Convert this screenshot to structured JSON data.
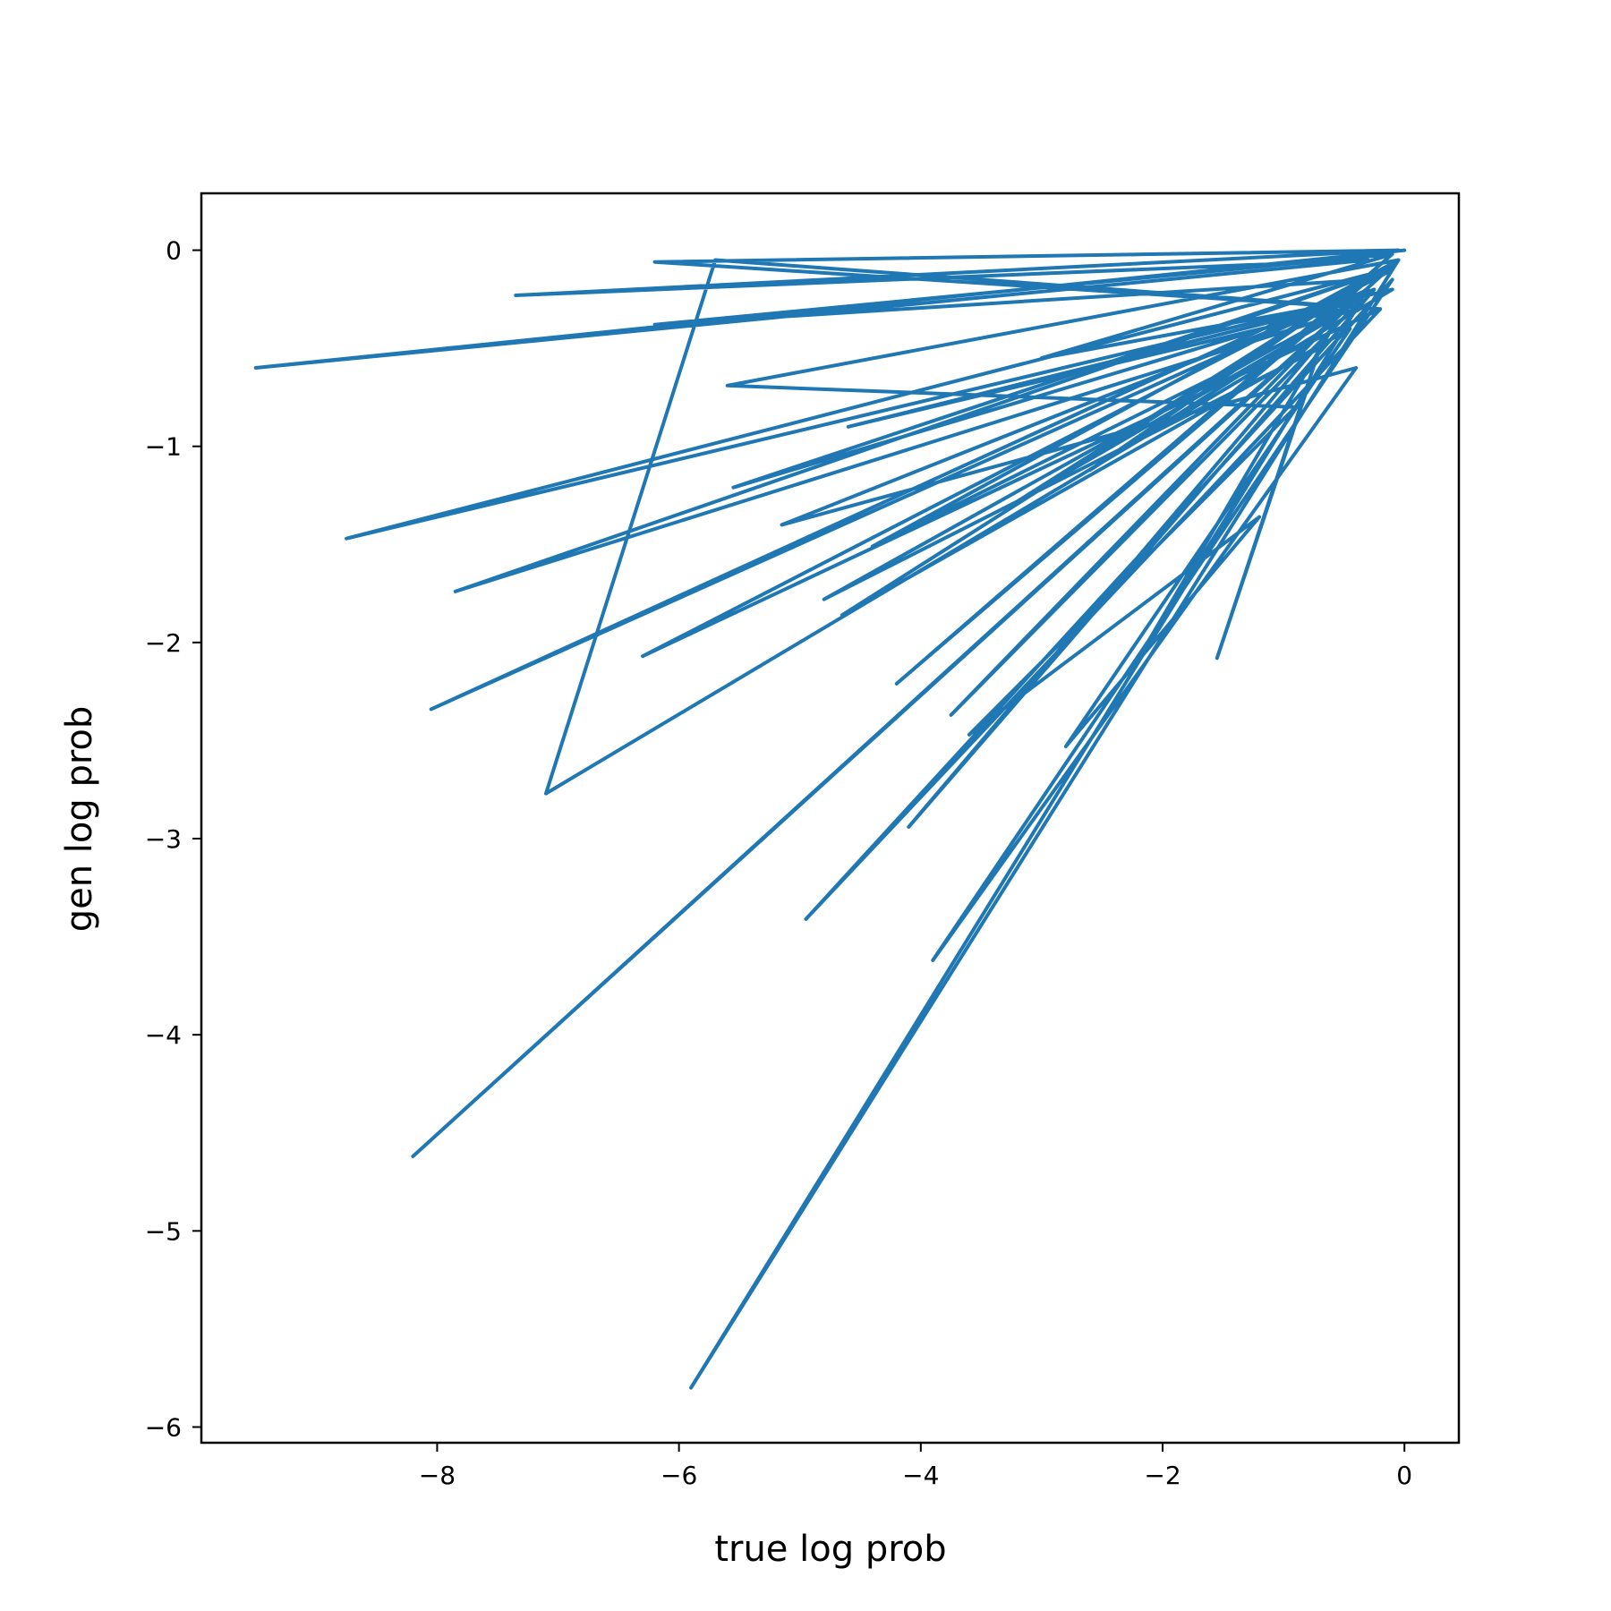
{
  "chart_data": {
    "type": "line",
    "xlabel": "true log prob",
    "ylabel": "gen log prob",
    "xlim": [
      -9.95,
      0.45
    ],
    "ylim": [
      -6.08,
      0.29
    ],
    "xticks": [
      -8,
      -6,
      -4,
      -2,
      0
    ],
    "xtick_labels": [
      "−8",
      "−6",
      "−4",
      "−2",
      "0"
    ],
    "yticks": [
      0,
      -1,
      -2,
      -3,
      -4,
      -5,
      -6
    ],
    "ytick_labels": [
      "0",
      "−1",
      "−2",
      "−3",
      "−4",
      "−5",
      "−6"
    ],
    "grid": false,
    "series": [
      {
        "color": "#1f77b4",
        "x": [
          0,
          -9.5,
          -0.3,
          -7.35,
          -0.05,
          -6.2,
          -0.2,
          -5.7,
          -7.1,
          -0.1,
          -8.75,
          -0.15,
          -7.85,
          -0.4,
          -5.9,
          -0.05,
          -8.2,
          -0.3,
          -8.05,
          -0.1,
          -6.3,
          -0.2,
          -4.95,
          -0.1,
          -3.9,
          -0.4,
          -5.15,
          -0.25,
          -4.1,
          -0.6,
          -2.2,
          -0.8,
          -1.55,
          -0.7,
          -4.8,
          -0.5,
          -3.75,
          -0.35,
          -5.55,
          -0.15,
          -4.65,
          -0.45,
          -2.8,
          -1.2,
          -3.6,
          -0.9,
          -5.6,
          -0.05,
          -4.4,
          -0.6,
          -3.2,
          -0.3,
          -6.2,
          -0.1,
          -4.2,
          -0.2,
          -2.6,
          -0.5,
          -4.6,
          -0.35,
          -3.0,
          -0.15
        ],
        "y": [
          0,
          -0.6,
          -0.05,
          -0.23,
          0,
          -0.06,
          -0.3,
          -0.05,
          -2.77,
          -0.2,
          -1.47,
          -0.1,
          -1.74,
          -0.3,
          -5.8,
          -0.05,
          -4.62,
          -0.2,
          -2.34,
          -0.1,
          -2.07,
          -0.3,
          -3.41,
          -0.15,
          -3.62,
          -0.6,
          -1.4,
          -0.2,
          -2.94,
          -0.4,
          -2.08,
          -0.7,
          -2.08,
          -0.5,
          -1.78,
          -0.3,
          -2.37,
          -0.25,
          -1.21,
          -0.1,
          -1.86,
          -0.4,
          -2.53,
          -1.36,
          -2.47,
          -0.8,
          -0.69,
          -0.05,
          -1.51,
          -0.35,
          -1.28,
          -0.15,
          -0.38,
          -0.02,
          -2.21,
          -0.1,
          -1.12,
          -0.3,
          -0.9,
          -0.25,
          -0.55,
          -0.03
        ]
      }
    ]
  }
}
